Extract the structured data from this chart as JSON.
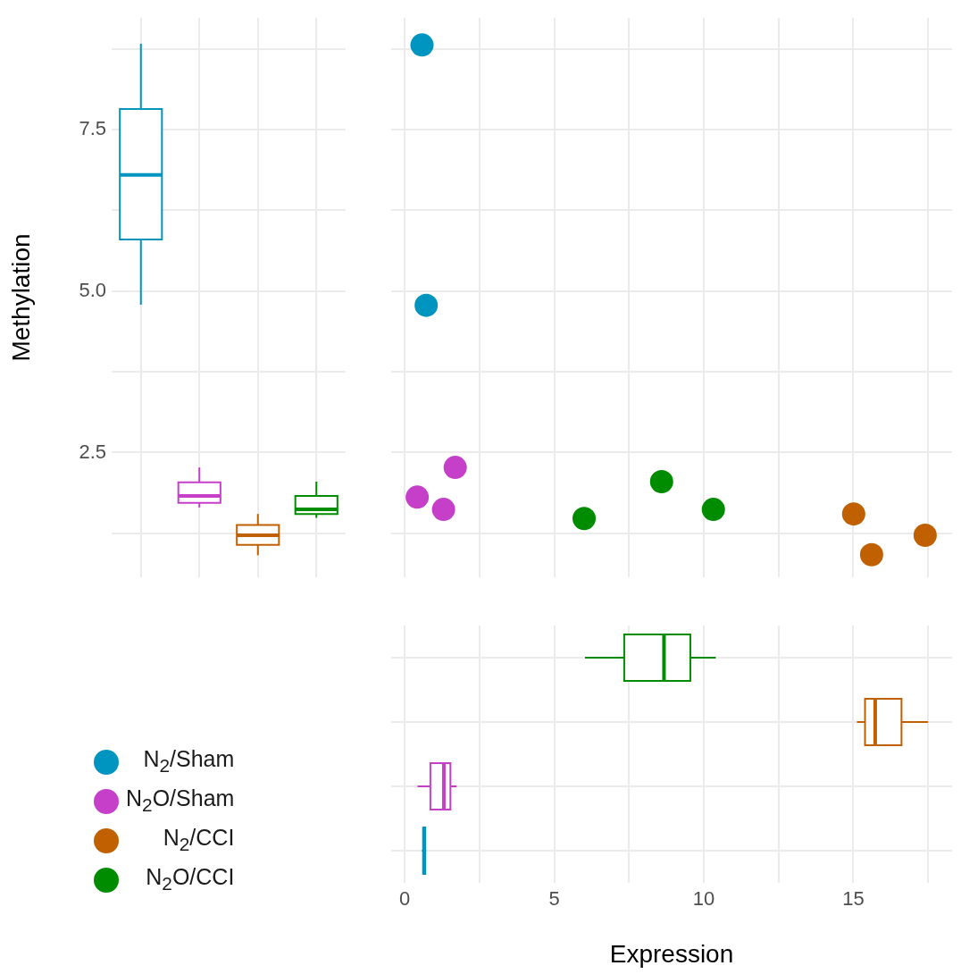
{
  "chart_data": [
    {
      "type": "box",
      "ylabel": "Methylation",
      "categories": [
        null,
        null,
        null,
        null
      ],
      "colors": [
        "#0094c0",
        "#c53fc9",
        "#c06000",
        "#008c00"
      ],
      "boxes": [
        {
          "low": 4.79,
          "q1": 5.8,
          "median": 6.8,
          "q3": 7.82,
          "high": 8.83
        },
        {
          "low": 1.65,
          "q1": 1.72,
          "median": 1.83,
          "q3": 2.04,
          "high": 2.27
        },
        {
          "low": 0.91,
          "q1": 1.07,
          "median": 1.22,
          "q3": 1.38,
          "high": 1.55
        },
        {
          "low": 1.49,
          "q1": 1.55,
          "median": 1.62,
          "q3": 1.83,
          "high": 2.05
        }
      ],
      "ylim": [
        0.57,
        9.23
      ],
      "yticks": [
        {
          "value": 1.25,
          "label": null
        },
        {
          "value": 2.5,
          "label": "2.5"
        },
        {
          "value": 3.75,
          "label": null
        },
        {
          "value": 5,
          "label": "5.0"
        },
        {
          "value": 6.25,
          "label": null
        },
        {
          "value": 7.5,
          "label": "7.5"
        },
        {
          "value": 8.75,
          "label": null
        }
      ],
      "grid": true,
      "tick_labels": "y"
    },
    {
      "type": "scatter",
      "marker": "circle",
      "legend": "bottom left",
      "grid": true,
      "tick_labels": false,
      "series": [
        {
          "name": "N$_{2}$/Sham",
          "color": "#0094c0",
          "x": [
            0.58,
            0.72
          ],
          "values": [
            8.81,
            4.78
          ]
        },
        {
          "name": "N$_{2}$O/Sham",
          "color": "#c53fc9",
          "x": [
            1.69,
            0.42,
            1.3
          ],
          "values": [
            2.27,
            1.81,
            1.62
          ]
        },
        {
          "name": "N$_{2}$/CCI",
          "color": "#c06000",
          "x": [
            15.01,
            15.61,
            17.4
          ],
          "values": [
            1.55,
            0.92,
            1.22
          ]
        },
        {
          "name": "N$_{2}$O/CCI",
          "color": "#008c00",
          "x": [
            6.0,
            8.59,
            10.32
          ],
          "values": [
            1.48,
            2.05,
            1.62
          ]
        }
      ],
      "xlim": [
        -0.45,
        18.3
      ],
      "xticks": [
        0,
        {
          "value": 2.5,
          "label": null
        },
        5,
        {
          "value": 7.5,
          "label": null
        },
        10,
        {
          "value": 12.5,
          "label": null
        },
        15,
        {
          "value": 17.5,
          "label": null
        }
      ],
      "ylim": [
        0.57,
        9.23
      ],
      "yticks": [
        {
          "value": 1.25,
          "label": null
        },
        {
          "value": 2.5,
          "label": null
        },
        {
          "value": 3.75,
          "label": null
        },
        {
          "value": 5,
          "label": null
        },
        {
          "value": 6.25,
          "label": null
        },
        {
          "value": 7.5,
          "label": null
        },
        {
          "value": 8.75,
          "label": null
        }
      ]
    },
    {
      "type": "box",
      "orientation": "horizontal",
      "xlabel": "Expression",
      "categories": [
        null,
        null,
        null,
        null
      ],
      "colors": [
        "#008c00",
        "#c06000",
        "#c53fc9",
        "#0094c0"
      ],
      "boxes": [
        {
          "low": 6.03,
          "q1": 7.34,
          "median": 8.67,
          "q3": 9.55,
          "high": 10.4
        },
        {
          "low": 15.12,
          "q1": 15.39,
          "median": 15.73,
          "q3": 16.61,
          "high": 17.5
        },
        {
          "low": 0.43,
          "q1": 0.86,
          "median": 1.31,
          "q3": 1.53,
          "high": 1.74
        },
        {
          "low": 0.58,
          "q1": 0.62,
          "median": 0.65,
          "q3": 0.69,
          "high": 0.72
        }
      ],
      "xlim": [
        -0.45,
        18.3
      ],
      "xticks": [
        0,
        {
          "value": 2.5,
          "label": null
        },
        5,
        {
          "value": 7.5,
          "label": null
        },
        10,
        {
          "value": 12.5,
          "label": null
        },
        15,
        {
          "value": 17.5,
          "label": null
        }
      ],
      "grid": true,
      "tick_labels": "x"
    }
  ]
}
